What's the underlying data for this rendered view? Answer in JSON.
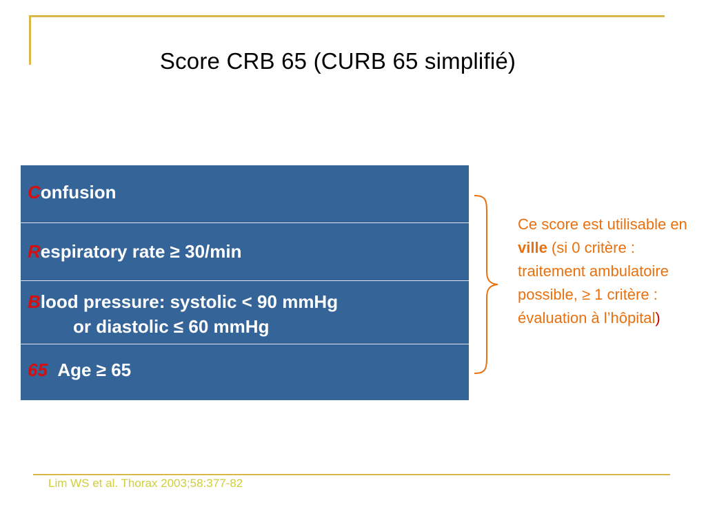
{
  "title": "Score CRB 65 (CURB 65 simplifié)",
  "table": {
    "rows": [
      {
        "initial": "C",
        "text": "onfusion"
      },
      {
        "initial": "R",
        "text": "espiratory rate ≥ 30/min"
      },
      {
        "initial": "B",
        "text": "lood pressure: systolic < 90 mmHg",
        "text2": "or diastolic ≤ 60 mmHg"
      },
      {
        "initial": "65",
        "text": "Age ≥ 65"
      }
    ]
  },
  "note": {
    "part1": "Ce score est utilisable en ",
    "bold": "ville",
    "part2": " (si 0 critère : traitement ambulatoire possible, ≥ 1 critère : évaluation à l’hôpital",
    "close": ")"
  },
  "citation": "Lim WS et al. Thorax 2003;58:377-82",
  "colors": {
    "table_bg": "#356499",
    "accent_red": "#d50f0f",
    "note_orange": "#e8700e",
    "rule_gold": "#d9b84a",
    "citation_yellow": "#d0ce3a"
  }
}
